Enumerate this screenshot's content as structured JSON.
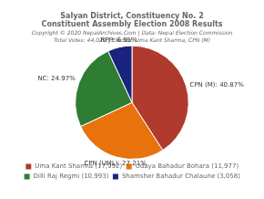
{
  "chart_data": {
    "type": "pie",
    "title": [
      "Salyan District, Constituency No. 2",
      "Constituent Assembly Election 2008 Results"
    ],
    "subtitle": [
      "Copyright © 2020 NepalArchives.Com | Data: Nepal Election Commission",
      "Total Votes: 44,020 | Elected: Uma Kant Sharma, CPN (M)"
    ],
    "categories": [
      "Uma Kant Sharma (17,992)",
      "Udaya Bahadur Bohara (11,977)",
      "Dilli Raj Regmi (10,993)",
      "Shamsher Bahadur Chalaune (3,058)"
    ],
    "values": [
      40.87,
      27.21,
      24.97,
      6.95
    ],
    "value_labels": [
      "CPN (M): 40.87%",
      "CPN (UML): 27.21%",
      "NC: 24.97%",
      "RPP: 6.95%"
    ],
    "colors": [
      "#b03a2e",
      "#e8720c",
      "#2e7d32",
      "#1a237e"
    ],
    "data_labels": true,
    "legend": "bottom"
  }
}
